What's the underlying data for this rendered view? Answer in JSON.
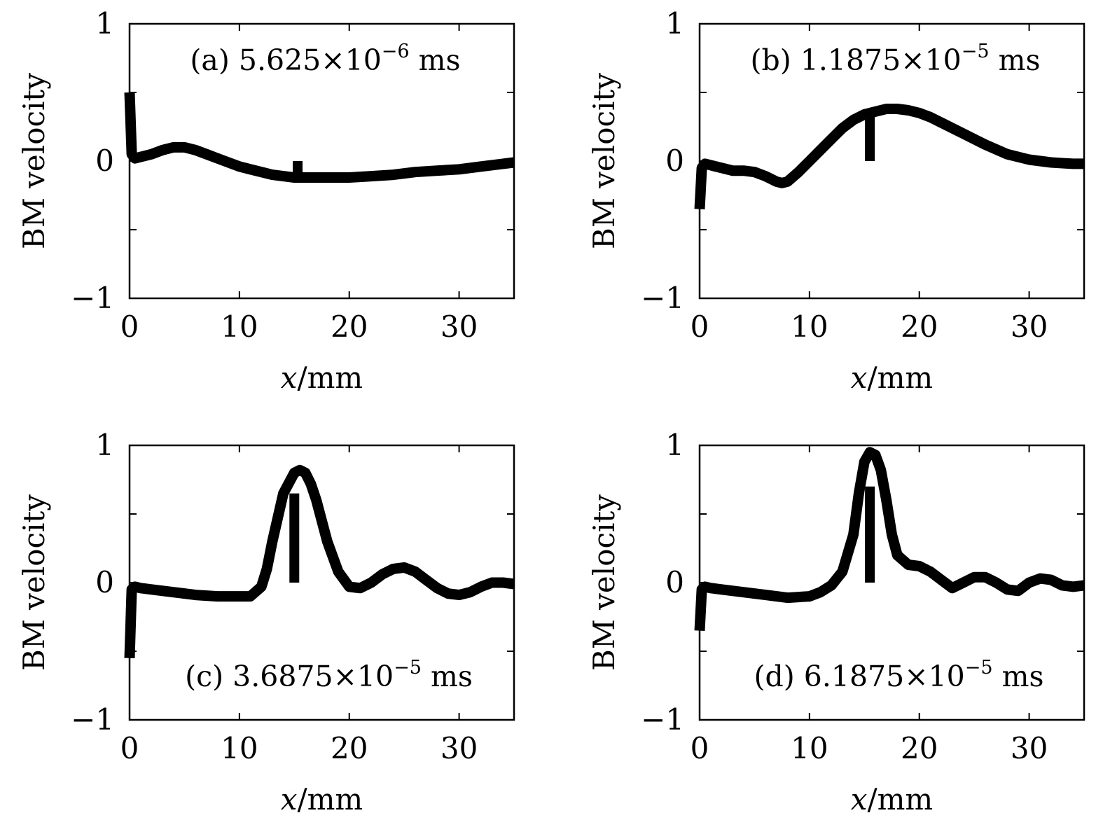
{
  "chart_data": [
    {
      "type": "line",
      "annotation": {
        "prefix": "(a) 5.625×10",
        "exponent": "−6",
        "suffix": " ms",
        "position": "top"
      },
      "xlabel": {
        "var": "x",
        "unit": "/mm"
      },
      "ylabel": "BM velocity",
      "xlim": [
        0,
        35
      ],
      "ylim": [
        -1,
        1
      ],
      "xticks": [
        "0",
        "10",
        "20",
        "30"
      ],
      "yticks": [
        "−1",
        "0",
        "1"
      ],
      "spike": {
        "x": 15.3,
        "low": -0.12,
        "high": 0.0
      },
      "series": [
        {
          "x": [
            0,
            0.2,
            0.5,
            1,
            2,
            3,
            4,
            5,
            6,
            7,
            8,
            9,
            10,
            11,
            12,
            13,
            14,
            15,
            16,
            17,
            18,
            19,
            20,
            22,
            24,
            26,
            28,
            30,
            32,
            34,
            35
          ],
          "values": [
            0.5,
            0.05,
            0.02,
            0.03,
            0.05,
            0.08,
            0.1,
            0.1,
            0.08,
            0.05,
            0.02,
            -0.01,
            -0.04,
            -0.06,
            -0.08,
            -0.1,
            -0.11,
            -0.12,
            -0.12,
            -0.12,
            -0.12,
            -0.12,
            -0.12,
            -0.11,
            -0.1,
            -0.08,
            -0.07,
            -0.06,
            -0.04,
            -0.02,
            -0.01
          ]
        }
      ]
    },
    {
      "type": "line",
      "annotation": {
        "prefix": "(b) 1.1875×10",
        "exponent": "−5",
        "suffix": " ms",
        "position": "top"
      },
      "xlabel": {
        "var": "x",
        "unit": "/mm"
      },
      "ylabel": "BM velocity",
      "xlim": [
        0,
        35
      ],
      "ylim": [
        -1,
        1
      ],
      "xticks": [
        "0",
        "10",
        "20",
        "30"
      ],
      "yticks": [
        "−1",
        "0",
        "1"
      ],
      "spike": {
        "x": 15.5,
        "low": 0.0,
        "high": 0.33
      },
      "series": [
        {
          "x": [
            0,
            0.2,
            0.5,
            1,
            2,
            3,
            4,
            5,
            6,
            7,
            7.5,
            8,
            9,
            10,
            11,
            12,
            13,
            14,
            15,
            16,
            17,
            18,
            19,
            20,
            21,
            22,
            24,
            26,
            28,
            30,
            32,
            34,
            35
          ],
          "values": [
            -0.35,
            -0.05,
            -0.02,
            -0.03,
            -0.05,
            -0.07,
            -0.07,
            -0.08,
            -0.11,
            -0.15,
            -0.16,
            -0.15,
            -0.08,
            0.0,
            0.08,
            0.16,
            0.24,
            0.3,
            0.34,
            0.36,
            0.38,
            0.38,
            0.37,
            0.35,
            0.32,
            0.28,
            0.2,
            0.12,
            0.05,
            0.01,
            -0.01,
            -0.02,
            -0.02
          ]
        }
      ]
    },
    {
      "type": "line",
      "annotation": {
        "prefix": "(c) 3.6875×10",
        "exponent": "−5",
        "suffix": " ms",
        "position": "bottom"
      },
      "xlabel": {
        "var": "x",
        "unit": "/mm"
      },
      "ylabel": "BM velocity",
      "xlim": [
        0,
        35
      ],
      "ylim": [
        -1,
        1
      ],
      "xticks": [
        "0",
        "10",
        "20",
        "30"
      ],
      "yticks": [
        "−1",
        "0",
        "1"
      ],
      "spike": {
        "x": 15.0,
        "low": 0.0,
        "high": 0.65
      },
      "series": [
        {
          "x": [
            0,
            0.2,
            0.5,
            1,
            2,
            4,
            6,
            8,
            10,
            11,
            12,
            12.5,
            13,
            14,
            15,
            15.5,
            16,
            16.5,
            17,
            18,
            19,
            20,
            21,
            22,
            23,
            24,
            25,
            26,
            27,
            28,
            29,
            30,
            31,
            32,
            33,
            34,
            35
          ],
          "values": [
            -0.55,
            -0.05,
            -0.03,
            -0.04,
            -0.05,
            -0.07,
            -0.09,
            -0.1,
            -0.1,
            -0.1,
            -0.03,
            0.1,
            0.3,
            0.65,
            0.8,
            0.82,
            0.8,
            0.72,
            0.6,
            0.3,
            0.08,
            -0.03,
            -0.04,
            0.0,
            0.06,
            0.1,
            0.11,
            0.08,
            0.02,
            -0.04,
            -0.08,
            -0.09,
            -0.07,
            -0.03,
            0.0,
            0.0,
            -0.01
          ]
        }
      ]
    },
    {
      "type": "line",
      "annotation": {
        "prefix": "(d) 6.1875×10",
        "exponent": "−5",
        "suffix": " ms",
        "position": "bottom"
      },
      "xlabel": {
        "var": "x",
        "unit": "/mm"
      },
      "ylabel": "BM velocity",
      "xlim": [
        0,
        35
      ],
      "ylim": [
        -1,
        1
      ],
      "xticks": [
        "0",
        "10",
        "20",
        "30"
      ],
      "yticks": [
        "−1",
        "0",
        "1"
      ],
      "spike": {
        "x": 15.5,
        "low": 0.0,
        "high": 0.7
      },
      "series": [
        {
          "x": [
            0,
            0.2,
            0.5,
            1,
            2,
            4,
            6,
            8,
            10,
            11,
            12,
            13,
            14,
            14.5,
            15,
            15.5,
            16,
            16.5,
            17,
            17.5,
            18,
            19,
            20,
            21,
            22,
            23,
            24,
            25,
            26,
            27,
            28,
            29,
            30,
            31,
            32,
            33,
            34,
            35
          ],
          "values": [
            -0.35,
            -0.05,
            -0.03,
            -0.04,
            -0.05,
            -0.07,
            -0.09,
            -0.11,
            -0.1,
            -0.07,
            -0.02,
            0.08,
            0.35,
            0.65,
            0.88,
            0.95,
            0.93,
            0.82,
            0.6,
            0.35,
            0.2,
            0.13,
            0.12,
            0.08,
            0.02,
            -0.04,
            0.0,
            0.04,
            0.04,
            0.0,
            -0.05,
            -0.06,
            0.0,
            0.03,
            0.02,
            -0.02,
            -0.03,
            -0.02
          ]
        }
      ]
    }
  ]
}
